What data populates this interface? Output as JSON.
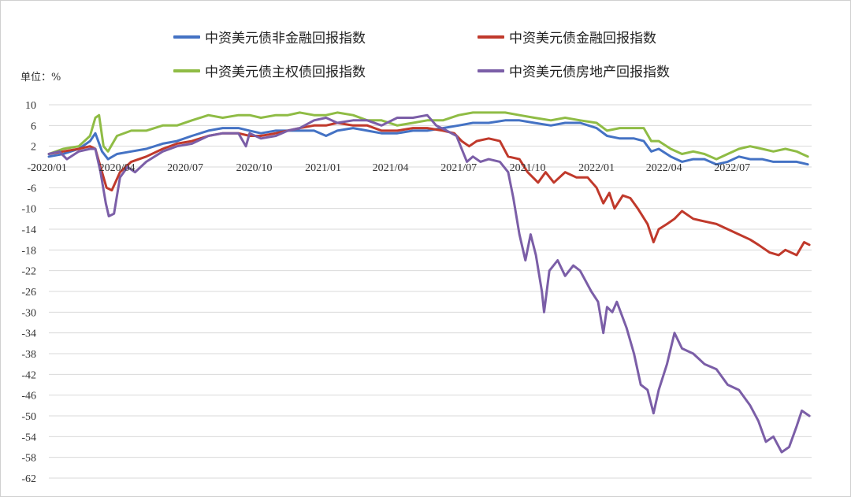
{
  "unit_label": "单位：%",
  "chart_data": {
    "type": "line",
    "xlabel": "",
    "ylabel": "",
    "ylim": [
      -62,
      10
    ],
    "y_ticks": [
      10,
      6,
      2,
      -2,
      -6,
      -10,
      -14,
      -18,
      -22,
      -26,
      -30,
      -34,
      -38,
      -42,
      -46,
      -50,
      -54,
      -58,
      -62
    ],
    "x_tick_labels": [
      "2020/01",
      "2020/04",
      "2020/07",
      "2020/10",
      "2021/01",
      "2021/04",
      "2021/07",
      "2021/10",
      "2022/01",
      "2022/04",
      "2022/07"
    ],
    "x_range": [
      "2020-01-01",
      "2022-10-15"
    ],
    "grid": true,
    "legend_position": "top",
    "series": [
      {
        "name": "中资美元债非金融回报指数",
        "color": "#4472c4",
        "points": [
          [
            "2020-01-01",
            0
          ],
          [
            "2020-01-20",
            0.5
          ],
          [
            "2020-02-10",
            1.5
          ],
          [
            "2020-02-25",
            3
          ],
          [
            "2020-03-03",
            4.5
          ],
          [
            "2020-03-12",
            1
          ],
          [
            "2020-03-20",
            -0.5
          ],
          [
            "2020-04-01",
            0.5
          ],
          [
            "2020-04-20",
            1
          ],
          [
            "2020-05-10",
            1.5
          ],
          [
            "2020-06-01",
            2.5
          ],
          [
            "2020-06-20",
            3
          ],
          [
            "2020-07-10",
            4
          ],
          [
            "2020-08-01",
            5
          ],
          [
            "2020-08-20",
            5.5
          ],
          [
            "2020-09-10",
            5.5
          ],
          [
            "2020-09-25",
            5
          ],
          [
            "2020-10-10",
            4.5
          ],
          [
            "2020-10-30",
            5
          ],
          [
            "2020-11-15",
            5
          ],
          [
            "2020-12-01",
            5
          ],
          [
            "2020-12-20",
            5
          ],
          [
            "2021-01-05",
            4
          ],
          [
            "2021-01-20",
            5
          ],
          [
            "2021-02-10",
            5.5
          ],
          [
            "2021-03-01",
            5
          ],
          [
            "2021-03-20",
            4.5
          ],
          [
            "2021-04-10",
            4.5
          ],
          [
            "2021-05-01",
            5
          ],
          [
            "2021-05-20",
            5
          ],
          [
            "2021-06-10",
            5.5
          ],
          [
            "2021-07-01",
            6
          ],
          [
            "2021-07-20",
            6.5
          ],
          [
            "2021-08-10",
            6.5
          ],
          [
            "2021-09-01",
            7
          ],
          [
            "2021-09-20",
            7
          ],
          [
            "2021-10-10",
            6.5
          ],
          [
            "2021-11-01",
            6
          ],
          [
            "2021-11-20",
            6.5
          ],
          [
            "2021-12-10",
            6.5
          ],
          [
            "2022-01-01",
            5.5
          ],
          [
            "2022-01-15",
            4
          ],
          [
            "2022-02-01",
            3.5
          ],
          [
            "2022-02-20",
            3.5
          ],
          [
            "2022-03-05",
            3
          ],
          [
            "2022-03-15",
            1
          ],
          [
            "2022-03-25",
            1.5
          ],
          [
            "2022-04-10",
            0
          ],
          [
            "2022-04-25",
            -1
          ],
          [
            "2022-05-10",
            -0.5
          ],
          [
            "2022-05-25",
            -0.5
          ],
          [
            "2022-06-10",
            -1.5
          ],
          [
            "2022-06-25",
            -1
          ],
          [
            "2022-07-10",
            0
          ],
          [
            "2022-07-25",
            -0.5
          ],
          [
            "2022-08-10",
            -0.5
          ],
          [
            "2022-08-25",
            -1
          ],
          [
            "2022-09-10",
            -1
          ],
          [
            "2022-09-25",
            -1
          ],
          [
            "2022-10-10",
            -1.5
          ]
        ]
      },
      {
        "name": "中资美元债金融回报指数",
        "color": "#c0392b",
        "points": [
          [
            "2020-01-01",
            0.5
          ],
          [
            "2020-01-20",
            1
          ],
          [
            "2020-02-10",
            1.5
          ],
          [
            "2020-02-25",
            2
          ],
          [
            "2020-03-03",
            1.5
          ],
          [
            "2020-03-10",
            -2
          ],
          [
            "2020-03-18",
            -6
          ],
          [
            "2020-03-25",
            -6.5
          ],
          [
            "2020-04-05",
            -3
          ],
          [
            "2020-04-20",
            -1
          ],
          [
            "2020-05-10",
            0
          ],
          [
            "2020-06-01",
            1.5
          ],
          [
            "2020-06-20",
            2.5
          ],
          [
            "2020-07-10",
            3
          ],
          [
            "2020-08-01",
            4
          ],
          [
            "2020-08-20",
            4.5
          ],
          [
            "2020-09-10",
            4.5
          ],
          [
            "2020-09-25",
            4
          ],
          [
            "2020-10-10",
            4
          ],
          [
            "2020-10-30",
            4.5
          ],
          [
            "2020-11-15",
            5
          ],
          [
            "2020-12-01",
            5.5
          ],
          [
            "2020-12-20",
            6
          ],
          [
            "2021-01-05",
            6
          ],
          [
            "2021-01-20",
            6.5
          ],
          [
            "2021-02-10",
            6
          ],
          [
            "2021-03-01",
            6
          ],
          [
            "2021-03-20",
            5
          ],
          [
            "2021-04-10",
            5
          ],
          [
            "2021-05-01",
            5.5
          ],
          [
            "2021-05-20",
            5.5
          ],
          [
            "2021-06-10",
            5
          ],
          [
            "2021-06-25",
            4.5
          ],
          [
            "2021-07-05",
            3
          ],
          [
            "2021-07-15",
            2
          ],
          [
            "2021-07-25",
            3
          ],
          [
            "2021-08-10",
            3.5
          ],
          [
            "2021-08-25",
            3
          ],
          [
            "2021-09-05",
            0
          ],
          [
            "2021-09-20",
            -0.5
          ],
          [
            "2021-10-01",
            -3
          ],
          [
            "2021-10-15",
            -5
          ],
          [
            "2021-10-25",
            -3
          ],
          [
            "2021-11-05",
            -5
          ],
          [
            "2021-11-20",
            -3
          ],
          [
            "2021-12-05",
            -4
          ],
          [
            "2021-12-20",
            -4
          ],
          [
            "2022-01-01",
            -6
          ],
          [
            "2022-01-10",
            -9
          ],
          [
            "2022-01-18",
            -7
          ],
          [
            "2022-01-25",
            -10
          ],
          [
            "2022-02-05",
            -7.5
          ],
          [
            "2022-02-15",
            -8
          ],
          [
            "2022-02-25",
            -10
          ],
          [
            "2022-03-10",
            -13
          ],
          [
            "2022-03-18",
            -16.5
          ],
          [
            "2022-03-25",
            -14
          ],
          [
            "2022-04-05",
            -13
          ],
          [
            "2022-04-15",
            -12
          ],
          [
            "2022-04-25",
            -10.5
          ],
          [
            "2022-05-10",
            -12
          ],
          [
            "2022-05-25",
            -12.5
          ],
          [
            "2022-06-10",
            -13
          ],
          [
            "2022-06-25",
            -14
          ],
          [
            "2022-07-10",
            -15
          ],
          [
            "2022-07-25",
            -16
          ],
          [
            "2022-08-05",
            -17
          ],
          [
            "2022-08-20",
            -18.5
          ],
          [
            "2022-09-01",
            -19
          ],
          [
            "2022-09-10",
            -18
          ],
          [
            "2022-09-25",
            -19
          ],
          [
            "2022-10-05",
            -16.5
          ],
          [
            "2022-10-12",
            -17
          ]
        ]
      },
      {
        "name": "中资美元债主权债回报指数",
        "color": "#8fbc45",
        "points": [
          [
            "2020-01-01",
            0.5
          ],
          [
            "2020-01-20",
            1.5
          ],
          [
            "2020-02-10",
            2
          ],
          [
            "2020-02-25",
            4
          ],
          [
            "2020-03-03",
            7.5
          ],
          [
            "2020-03-08",
            8
          ],
          [
            "2020-03-14",
            2
          ],
          [
            "2020-03-20",
            1
          ],
          [
            "2020-04-01",
            4
          ],
          [
            "2020-04-20",
            5
          ],
          [
            "2020-05-10",
            5
          ],
          [
            "2020-06-01",
            6
          ],
          [
            "2020-06-20",
            6
          ],
          [
            "2020-07-10",
            7
          ],
          [
            "2020-08-01",
            8
          ],
          [
            "2020-08-20",
            7.5
          ],
          [
            "2020-09-10",
            8
          ],
          [
            "2020-09-25",
            8
          ],
          [
            "2020-10-10",
            7.5
          ],
          [
            "2020-10-30",
            8
          ],
          [
            "2020-11-15",
            8
          ],
          [
            "2020-12-01",
            8.5
          ],
          [
            "2020-12-20",
            8
          ],
          [
            "2021-01-05",
            8
          ],
          [
            "2021-01-20",
            8.5
          ],
          [
            "2021-02-10",
            8
          ],
          [
            "2021-03-01",
            7
          ],
          [
            "2021-03-20",
            7
          ],
          [
            "2021-04-10",
            6
          ],
          [
            "2021-05-01",
            6.5
          ],
          [
            "2021-05-20",
            7
          ],
          [
            "2021-06-10",
            7
          ],
          [
            "2021-07-01",
            8
          ],
          [
            "2021-07-20",
            8.5
          ],
          [
            "2021-08-10",
            8.5
          ],
          [
            "2021-09-01",
            8.5
          ],
          [
            "2021-09-20",
            8
          ],
          [
            "2021-10-10",
            7.5
          ],
          [
            "2021-11-01",
            7
          ],
          [
            "2021-11-20",
            7.5
          ],
          [
            "2021-12-10",
            7
          ],
          [
            "2022-01-01",
            6.5
          ],
          [
            "2022-01-15",
            5
          ],
          [
            "2022-02-01",
            5.5
          ],
          [
            "2022-02-20",
            5.5
          ],
          [
            "2022-03-05",
            5.5
          ],
          [
            "2022-03-15",
            3
          ],
          [
            "2022-03-25",
            3
          ],
          [
            "2022-04-10",
            1.5
          ],
          [
            "2022-04-25",
            0.5
          ],
          [
            "2022-05-10",
            1
          ],
          [
            "2022-05-25",
            0.5
          ],
          [
            "2022-06-10",
            -0.5
          ],
          [
            "2022-06-25",
            0.5
          ],
          [
            "2022-07-10",
            1.5
          ],
          [
            "2022-07-25",
            2
          ],
          [
            "2022-08-10",
            1.5
          ],
          [
            "2022-08-25",
            1
          ],
          [
            "2022-09-10",
            1.5
          ],
          [
            "2022-09-25",
            1
          ],
          [
            "2022-10-10",
            0
          ]
        ]
      },
      {
        "name": "中资美元债房地产回报指数",
        "color": "#7b5ea7",
        "points": [
          [
            "2020-01-01",
            0.5
          ],
          [
            "2020-01-15",
            1
          ],
          [
            "2020-01-25",
            -0.5
          ],
          [
            "2020-02-10",
            1
          ],
          [
            "2020-02-25",
            1.5
          ],
          [
            "2020-03-03",
            1.5
          ],
          [
            "2020-03-10",
            -3
          ],
          [
            "2020-03-17",
            -9
          ],
          [
            "2020-03-21",
            -11.5
          ],
          [
            "2020-03-28",
            -11
          ],
          [
            "2020-04-05",
            -4
          ],
          [
            "2020-04-15",
            -2
          ],
          [
            "2020-04-25",
            -3
          ],
          [
            "2020-05-10",
            -1
          ],
          [
            "2020-06-01",
            1
          ],
          [
            "2020-06-20",
            2
          ],
          [
            "2020-07-10",
            2.5
          ],
          [
            "2020-08-01",
            4
          ],
          [
            "2020-08-20",
            4.5
          ],
          [
            "2020-09-10",
            4.5
          ],
          [
            "2020-09-20",
            2
          ],
          [
            "2020-09-25",
            4.5
          ],
          [
            "2020-10-10",
            3.5
          ],
          [
            "2020-10-30",
            4
          ],
          [
            "2020-11-15",
            5
          ],
          [
            "2020-12-01",
            5.5
          ],
          [
            "2020-12-20",
            7
          ],
          [
            "2021-01-05",
            7.5
          ],
          [
            "2021-01-20",
            6.5
          ],
          [
            "2021-02-10",
            7
          ],
          [
            "2021-03-01",
            7
          ],
          [
            "2021-03-20",
            6
          ],
          [
            "2021-04-10",
            7.5
          ],
          [
            "2021-05-01",
            7.5
          ],
          [
            "2021-05-20",
            8
          ],
          [
            "2021-06-01",
            6
          ],
          [
            "2021-06-15",
            5
          ],
          [
            "2021-06-28",
            4
          ],
          [
            "2021-07-05",
            1.5
          ],
          [
            "2021-07-12",
            -1
          ],
          [
            "2021-07-20",
            0
          ],
          [
            "2021-07-30",
            -1
          ],
          [
            "2021-08-10",
            -0.5
          ],
          [
            "2021-08-25",
            -1
          ],
          [
            "2021-09-05",
            -3
          ],
          [
            "2021-09-12",
            -8
          ],
          [
            "2021-09-20",
            -15
          ],
          [
            "2021-09-28",
            -20
          ],
          [
            "2021-10-05",
            -15
          ],
          [
            "2021-10-12",
            -19
          ],
          [
            "2021-10-20",
            -26
          ],
          [
            "2021-10-23",
            -30
          ],
          [
            "2021-10-30",
            -22
          ],
          [
            "2021-11-10",
            -20
          ],
          [
            "2021-11-20",
            -23
          ],
          [
            "2021-12-01",
            -21
          ],
          [
            "2021-12-10",
            -22
          ],
          [
            "2021-12-25",
            -26
          ],
          [
            "2022-01-03",
            -28
          ],
          [
            "2022-01-10",
            -34
          ],
          [
            "2022-01-15",
            -29
          ],
          [
            "2022-01-22",
            -30
          ],
          [
            "2022-01-28",
            -28
          ],
          [
            "2022-02-10",
            -33
          ],
          [
            "2022-02-20",
            -38
          ],
          [
            "2022-03-01",
            -44
          ],
          [
            "2022-03-10",
            -45
          ],
          [
            "2022-03-18",
            -49.5
          ],
          [
            "2022-03-25",
            -45
          ],
          [
            "2022-04-05",
            -40
          ],
          [
            "2022-04-15",
            -34
          ],
          [
            "2022-04-25",
            -37
          ],
          [
            "2022-05-10",
            -38
          ],
          [
            "2022-05-25",
            -40
          ],
          [
            "2022-06-10",
            -41
          ],
          [
            "2022-06-25",
            -44
          ],
          [
            "2022-07-10",
            -45
          ],
          [
            "2022-07-25",
            -48
          ],
          [
            "2022-08-05",
            -51
          ],
          [
            "2022-08-15",
            -55
          ],
          [
            "2022-08-25",
            -54
          ],
          [
            "2022-09-05",
            -57
          ],
          [
            "2022-09-15",
            -56
          ],
          [
            "2022-09-25",
            -52
          ],
          [
            "2022-10-02",
            -49
          ],
          [
            "2022-10-12",
            -50
          ]
        ]
      }
    ]
  }
}
